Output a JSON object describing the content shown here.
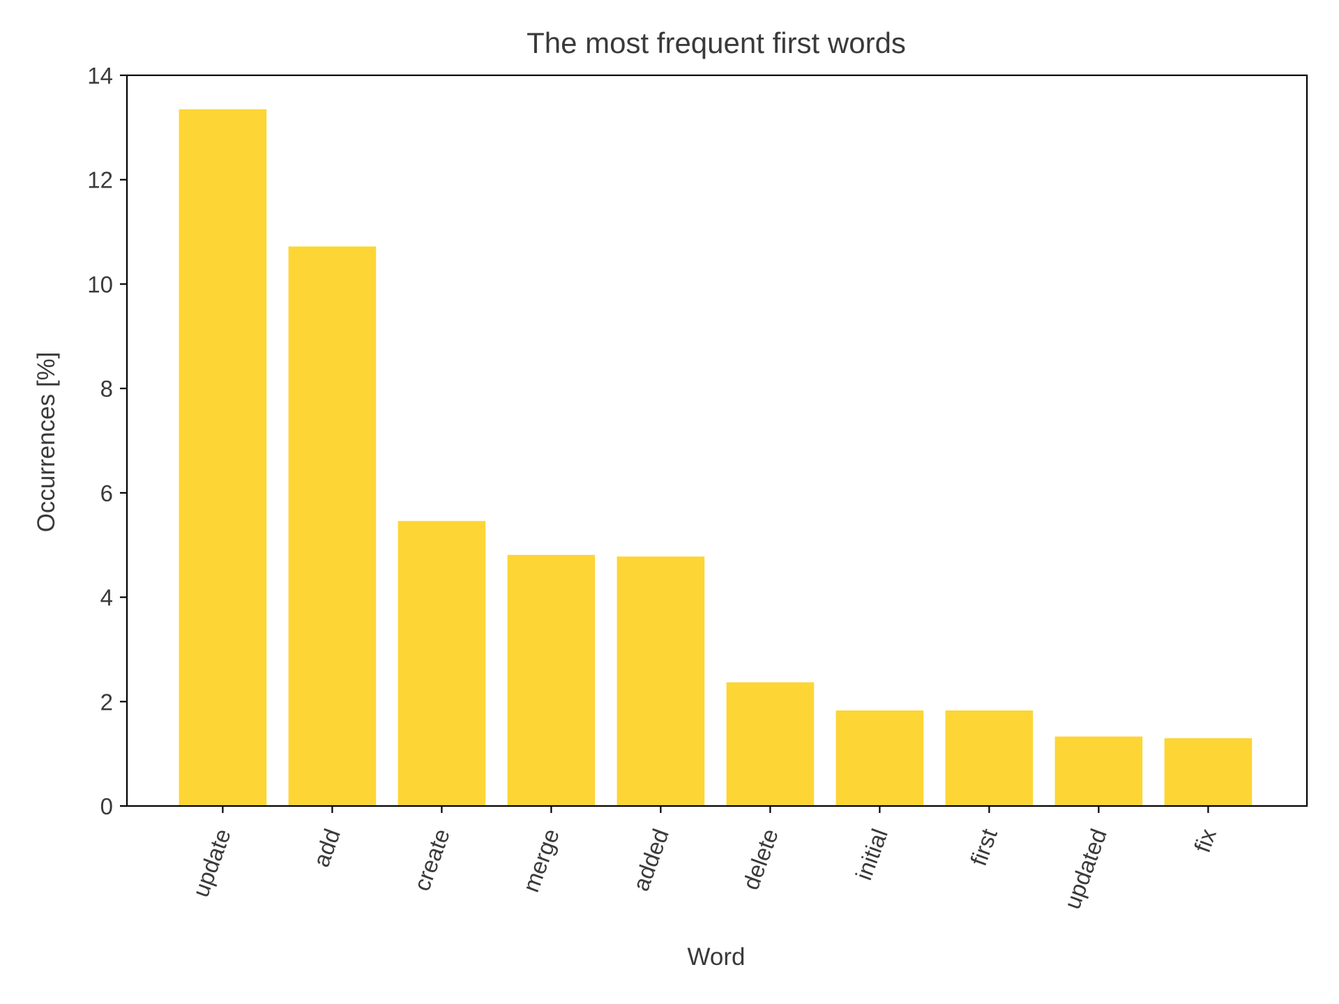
{
  "chart_data": {
    "type": "bar",
    "title": "The most frequent first words",
    "xlabel": "Word",
    "ylabel": "Occurrences [%]",
    "categories": [
      "update",
      "add",
      "create",
      "merge",
      "added",
      "delete",
      "initial",
      "first",
      "updated",
      "fix"
    ],
    "values": [
      13.35,
      10.72,
      5.46,
      4.81,
      4.78,
      2.37,
      1.83,
      1.83,
      1.33,
      1.3
    ],
    "ylim": [
      0,
      14
    ],
    "yticks": [
      0,
      2,
      4,
      6,
      8,
      10,
      12,
      14
    ],
    "grid": false,
    "legend": "none",
    "bar_color": "#FDD535",
    "x_tick_rotation": "-70deg"
  }
}
